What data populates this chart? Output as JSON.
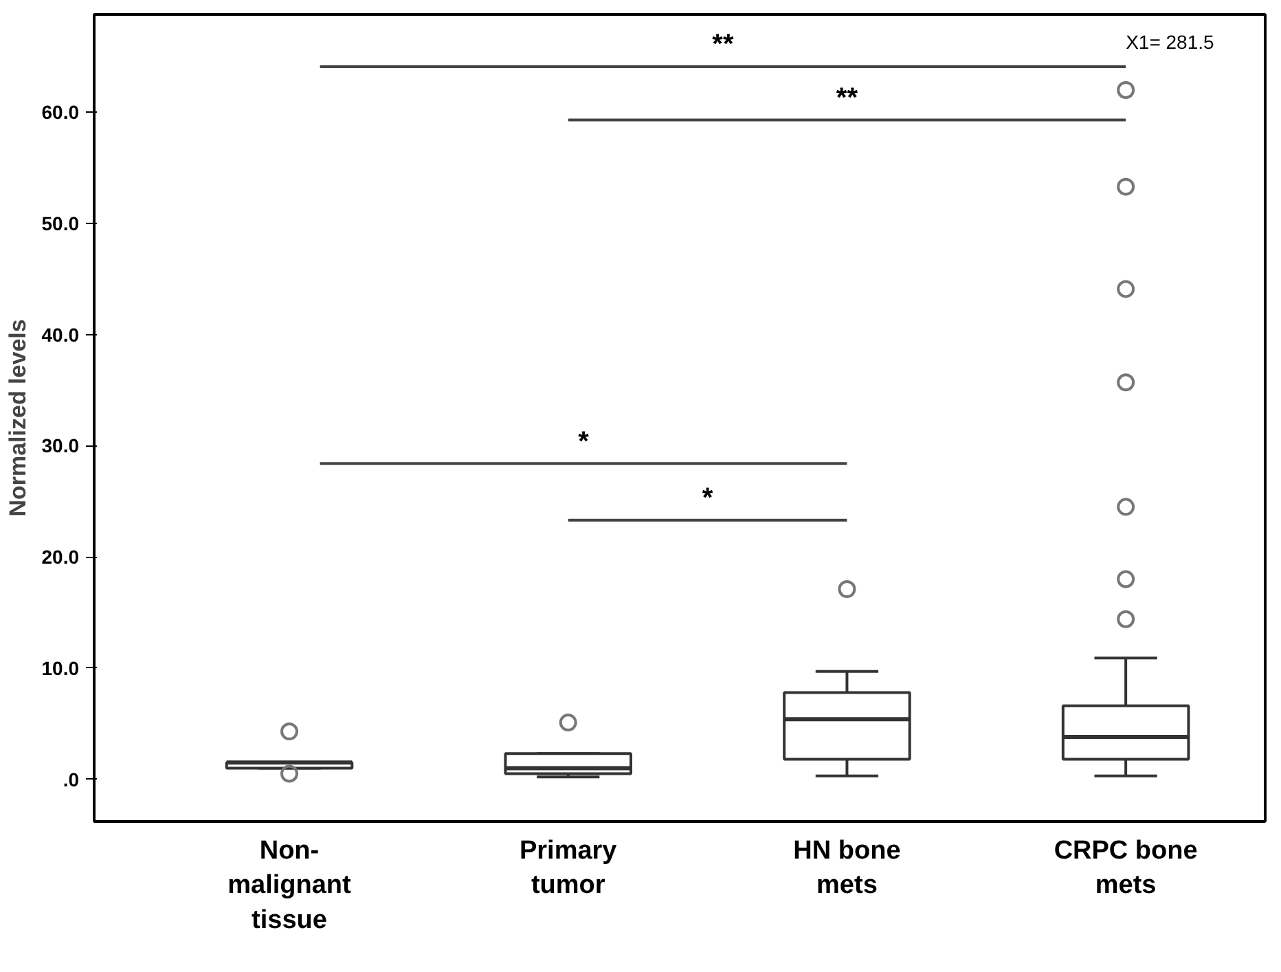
{
  "chart_data": {
    "type": "box",
    "ylabel": "Normalized levels",
    "categories": [
      "Non-\nmalignant\ntissue",
      "Primary\ntumor",
      "HN bone\nmets",
      "CRPC bone\nmets"
    ],
    "boxes": [
      {
        "low": 1.0,
        "q1": 1.0,
        "median": 1.5,
        "q3": 1.5,
        "high": 1.5,
        "outliers": [
          4.3,
          0.5
        ]
      },
      {
        "low": 0.2,
        "q1": 0.5,
        "median": 1.0,
        "q3": 2.3,
        "high": 2.3,
        "outliers": [
          5.1
        ]
      },
      {
        "low": 0.3,
        "q1": 1.8,
        "median": 5.4,
        "q3": 7.8,
        "high": 9.7,
        "outliers": [
          17.1
        ]
      },
      {
        "low": 0.3,
        "q1": 1.8,
        "median": 3.8,
        "q3": 6.6,
        "high": 10.9,
        "outliers": [
          14.4,
          18.0,
          24.5,
          35.7,
          44.1,
          53.3,
          62.0
        ]
      }
    ],
    "ylim": [
      -3.8,
      68.8
    ],
    "yticks": [
      {
        "value": 0,
        "label": ".0"
      },
      {
        "value": 10,
        "label": "10.0"
      },
      {
        "value": 20,
        "label": "20.0"
      },
      {
        "value": 30,
        "label": "30.0"
      },
      {
        "value": 40,
        "label": "40.0"
      },
      {
        "value": 50,
        "label": "50.0"
      },
      {
        "value": 60,
        "label": "60.0"
      }
    ],
    "grid": false,
    "annotations": [
      "**",
      "**",
      "*",
      "*",
      "X1= 281.5"
    ]
  }
}
